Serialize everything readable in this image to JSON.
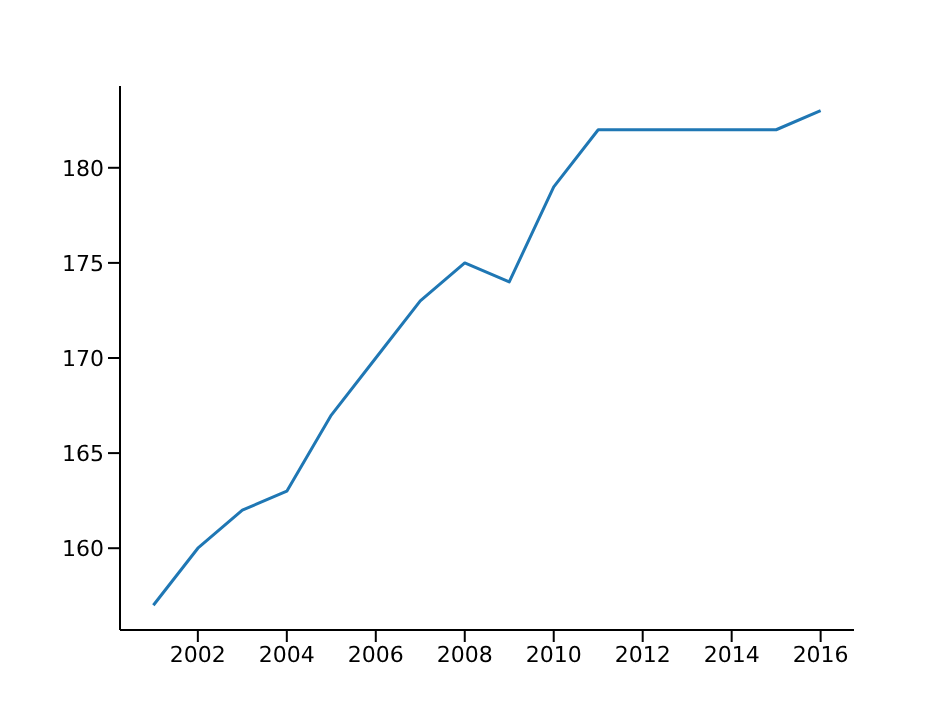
{
  "chart_data": {
    "type": "line",
    "x": [
      2001,
      2002,
      2003,
      2004,
      2005,
      2006,
      2007,
      2008,
      2009,
      2010,
      2011,
      2012,
      2013,
      2014,
      2015,
      2016
    ],
    "series": [
      {
        "color": "#1f77b4",
        "values": [
          157,
          160,
          162,
          163,
          167,
          170,
          173,
          175,
          174,
          179,
          182,
          182,
          182,
          182,
          182,
          183
        ]
      }
    ],
    "xlim": [
      2000.25,
      2016.75
    ],
    "xticks": [
      2002,
      2004,
      2006,
      2008,
      2010,
      2012,
      2014,
      2016
    ],
    "ylim": [
      155.7,
      184.3
    ],
    "yticks": [
      160,
      165,
      170,
      175,
      180
    ],
    "marker": "none",
    "line_style": "solid"
  }
}
